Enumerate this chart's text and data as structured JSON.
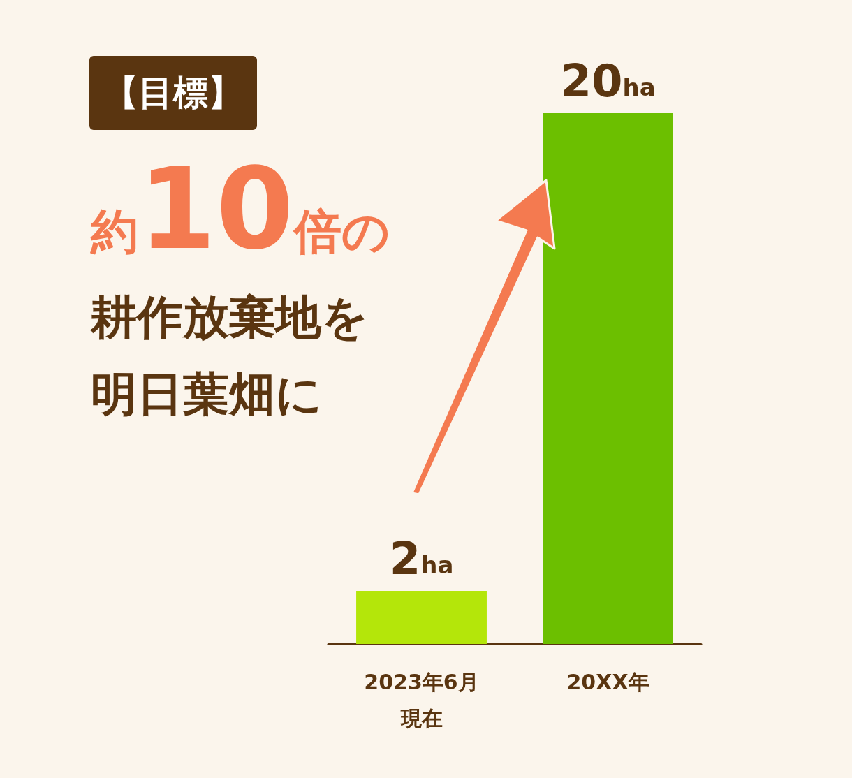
{
  "chart_data": {
    "type": "bar",
    "categories": [
      "2023年6月現在",
      "20XX年"
    ],
    "values": [
      2,
      20
    ],
    "colors": [
      "#b4e60a",
      "#6cbf00"
    ],
    "value_labels": [
      "2ha",
      "20ha"
    ],
    "annotations": [
      "【目標】",
      "約10倍の",
      "耕作放棄地を",
      "明日葉畑に"
    ]
  }
}
